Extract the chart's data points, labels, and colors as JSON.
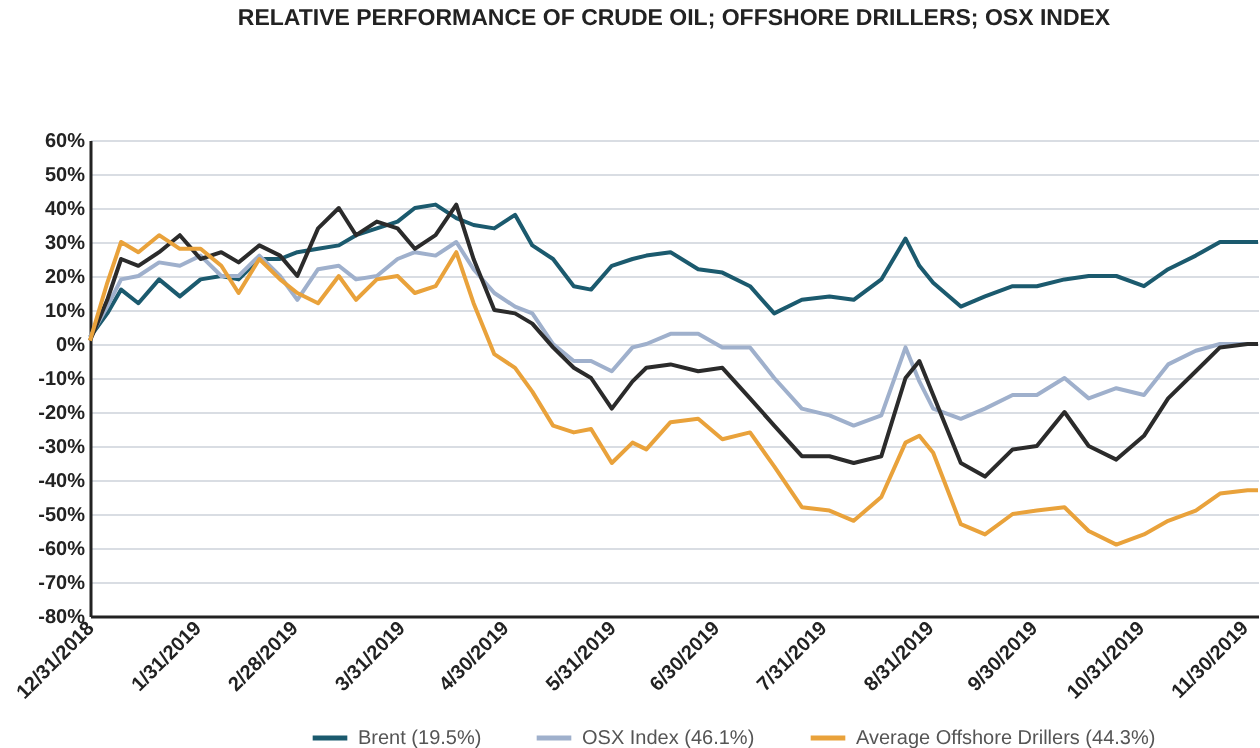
{
  "chart_data": {
    "type": "line",
    "title": "RELATIVE PERFORMANCE OF CRUDE OIL; OFFSHORE DRILLERS; OSX INDEX",
    "x": [
      "2018-12-31",
      "2019-01-05",
      "2019-01-09",
      "2019-01-14",
      "2019-01-20",
      "2019-01-26",
      "2019-02-01",
      "2019-02-07",
      "2019-02-12",
      "2019-02-18",
      "2019-02-24",
      "2019-03-01",
      "2019-03-07",
      "2019-03-13",
      "2019-03-18",
      "2019-03-24",
      "2019-03-30",
      "2019-04-04",
      "2019-04-10",
      "2019-04-16",
      "2019-04-21",
      "2019-04-27",
      "2019-05-03",
      "2019-05-08",
      "2019-05-14",
      "2019-05-20",
      "2019-05-25",
      "2019-05-31",
      "2019-06-06",
      "2019-06-10",
      "2019-06-17",
      "2019-06-25",
      "2019-07-02",
      "2019-07-10",
      "2019-07-17",
      "2019-07-25",
      "2019-08-02",
      "2019-08-09",
      "2019-08-17",
      "2019-08-24",
      "2019-08-28",
      "2019-09-01",
      "2019-09-09",
      "2019-09-16",
      "2019-09-24",
      "2019-10-01",
      "2019-10-09",
      "2019-10-16",
      "2019-10-24",
      "2019-11-01",
      "2019-11-08",
      "2019-11-16",
      "2019-11-23",
      "2019-12-01",
      "2019-12-04"
    ],
    "xlim": [
      "2018-12-31",
      "2019-12-04"
    ],
    "xticks": [
      {
        "value": "2018-12-31",
        "label": "12/31/2018"
      },
      {
        "value": "2019-01-31",
        "label": "1/31/2019"
      },
      {
        "value": "2019-02-28",
        "label": "2/28/2019"
      },
      {
        "value": "2019-03-31",
        "label": "3/31/2019"
      },
      {
        "value": "2019-04-30",
        "label": "4/30/2019"
      },
      {
        "value": "2019-05-31",
        "label": "5/31/2019"
      },
      {
        "value": "2019-06-30",
        "label": "6/30/2019"
      },
      {
        "value": "2019-07-31",
        "label": "7/31/2019"
      },
      {
        "value": "2019-08-31",
        "label": "8/31/2019"
      },
      {
        "value": "2019-09-30",
        "label": "9/30/2019"
      },
      {
        "value": "2019-10-31",
        "label": "10/31/2019"
      },
      {
        "value": "2019-11-30",
        "label": "11/30/2019"
      }
    ],
    "ylim": [
      -80,
      60
    ],
    "yticks": [
      {
        "value": -80,
        "label": "-80%"
      },
      {
        "value": -70,
        "label": "-70%"
      },
      {
        "value": -60,
        "label": "-60%"
      },
      {
        "value": -50,
        "label": "-50%"
      },
      {
        "value": -40,
        "label": "-40%"
      },
      {
        "value": -30,
        "label": "-30%"
      },
      {
        "value": -20,
        "label": "-20%"
      },
      {
        "value": -10,
        "label": "-10%"
      },
      {
        "value": 0,
        "label": "0%"
      },
      {
        "value": 10,
        "label": "10%"
      },
      {
        "value": 20,
        "label": "20%"
      },
      {
        "value": 30,
        "label": "30%"
      },
      {
        "value": 40,
        "label": "40%"
      },
      {
        "value": 50,
        "label": "50%"
      },
      {
        "value": 60,
        "label": "60%"
      }
    ],
    "grid": "y",
    "legend": "bottom",
    "series": [
      {
        "name": "Brent (19.5%)",
        "color": "#1b5a6e",
        "values": [
          2,
          9,
          16,
          12,
          19,
          14,
          19,
          20,
          19,
          25,
          25,
          27,
          28,
          29,
          32,
          34,
          36,
          40,
          41,
          37,
          35,
          34,
          38,
          29,
          25,
          17,
          16,
          23,
          25,
          26,
          27,
          22,
          21,
          17,
          9,
          13,
          14,
          13,
          19,
          31,
          23,
          18,
          11,
          14,
          17,
          17,
          19,
          20,
          20,
          17,
          22,
          26,
          30,
          30,
          30
        ]
      },
      {
        "name": "OSX Index (46.1%)",
        "color": "#9fb0cc",
        "values": [
          2,
          11,
          19,
          20,
          24,
          23,
          26,
          20,
          20,
          26,
          20,
          13,
          22,
          23,
          19,
          20,
          25,
          27,
          26,
          30,
          22,
          15,
          11,
          9,
          0,
          -5,
          -5,
          -8,
          -1,
          0,
          3,
          3,
          -1,
          -1,
          -10,
          -19,
          -21,
          -24,
          -21,
          -1,
          -11,
          -19,
          -22,
          -19,
          -15,
          -15,
          -10,
          -16,
          -13,
          -15,
          -6,
          -2,
          0,
          0,
          0
        ]
      },
      {
        "color": "#2b2b2b",
        "values": [
          1,
          13,
          25,
          23,
          27,
          32,
          25,
          27,
          24,
          29,
          26,
          20,
          34,
          40,
          32,
          36,
          34,
          28,
          32,
          41,
          25,
          10,
          9,
          6,
          -1,
          -7,
          -10,
          -19,
          -11,
          -7,
          -6,
          -8,
          -7,
          -16,
          -24,
          -33,
          -33,
          -35,
          -33,
          -10,
          -5,
          -15,
          -35,
          -39,
          -31,
          -30,
          -20,
          -30,
          -34,
          -27,
          -16,
          -8,
          -1,
          0,
          0
        ]
      },
      {
        "name": "Average Offshore Drillers (44.3%)",
        "color": "#e9a23b",
        "values": [
          1,
          18,
          30,
          27,
          32,
          28,
          28,
          23,
          15,
          25,
          19,
          15,
          12,
          20,
          13,
          19,
          20,
          15,
          17,
          27,
          12,
          -3,
          -7,
          -14,
          -24,
          -26,
          -25,
          -35,
          -29,
          -31,
          -23,
          -22,
          -28,
          -26,
          -36,
          -48,
          -49,
          -52,
          -45,
          -29,
          -27,
          -32,
          -53,
          -56,
          -50,
          -49,
          -48,
          -55,
          -59,
          -56,
          -52,
          -49,
          -44,
          -43,
          -43
        ]
      }
    ]
  }
}
